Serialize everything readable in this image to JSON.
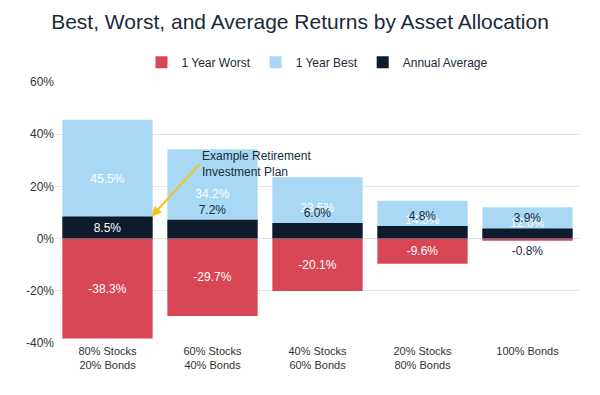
{
  "chart_data": {
    "type": "bar",
    "title": "Best, Worst, and Average Returns by Asset Allocation",
    "categories": [
      "80% Stocks\n20% Bonds",
      "60% Stocks\n40% Bonds",
      "40% Stocks\n60% Bonds",
      "20% Stocks\n80% Bonds",
      "100% Bonds"
    ],
    "series": [
      {
        "name": "1 Year Worst",
        "color": "#d94656",
        "values": [
          -38.3,
          -29.7,
          -20.1,
          -9.6,
          -0.8
        ],
        "value_labels": [
          "-38.3%",
          "-29.7%",
          "-20.1%",
          "-9.6%",
          "-0.8%"
        ]
      },
      {
        "name": "1 Year Best",
        "color": "#a9d8f4",
        "values": [
          45.5,
          34.2,
          23.5,
          14.5,
          12.0
        ],
        "value_labels": [
          "45.5%",
          "34.2%",
          "23.5%",
          "14.5%",
          "12.0%"
        ]
      },
      {
        "name": "Annual Average",
        "color": "#0e1b2c",
        "values": [
          8.5,
          7.2,
          6.0,
          4.8,
          3.9
        ],
        "value_labels": [
          "8.5%",
          "7.2%",
          "6.0%",
          "4.8%",
          "3.9%"
        ]
      }
    ],
    "ylim": [
      -40,
      60
    ],
    "yticks": [
      {
        "value": -40,
        "label": "-40%"
      },
      {
        "value": -20,
        "label": "-20%"
      },
      {
        "value": 0,
        "label": "0%"
      },
      {
        "value": 20,
        "label": "20%"
      },
      {
        "value": 40,
        "label": "40%"
      },
      {
        "value": 60,
        "label": "60%"
      }
    ],
    "grid": true,
    "legend": "top",
    "data_labels": true,
    "annotations": [
      {
        "text": "Example Retirement\nInvestment Plan",
        "x": "80% Stocks\n20% Bonds",
        "y": 8.5
      }
    ]
  }
}
